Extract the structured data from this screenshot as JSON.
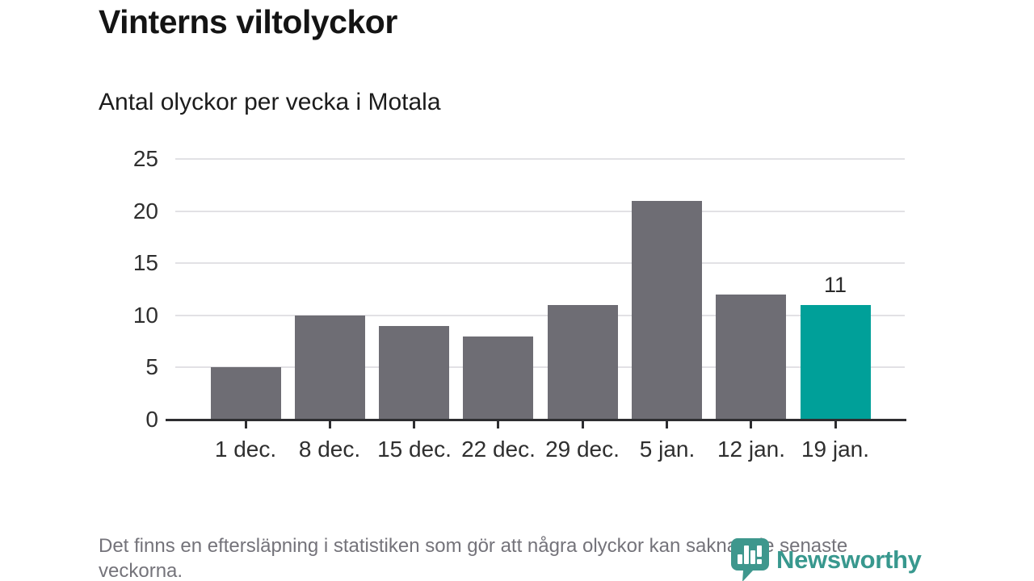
{
  "header": {
    "title": "Vinterns viltolyckor",
    "subtitle": "Antal olyckor per vecka i Motala"
  },
  "chart_data": {
    "type": "bar",
    "title": "Vinterns viltolyckor",
    "subtitle": "Antal olyckor per vecka i Motala",
    "categories": [
      "1 dec.",
      "8 dec.",
      "15 dec.",
      "22 dec.",
      "29 dec.",
      "5 jan.",
      "12 jan.",
      "19 jan."
    ],
    "values": [
      5,
      10,
      9,
      8,
      11,
      21,
      12,
      11
    ],
    "highlighted_index": 7,
    "data_label": {
      "index": 7,
      "text": "11"
    },
    "xlabel": "",
    "ylabel": "",
    "yticks": [
      0,
      5,
      10,
      15,
      20,
      25
    ],
    "ylim": [
      0,
      25
    ],
    "grid": "horizontal-only",
    "legend": "none",
    "bar_color": "#6e6d74",
    "highlight_color": "#00a099",
    "gridline_color": "#e2e1e5",
    "axis_color": "#2d2d30"
  },
  "footnote": {
    "text": "Det finns en eftersläpning i statistiken som gör att några olyckor kan saknas de senaste veckorna."
  },
  "logo": {
    "text": "Newsworthy",
    "color": "#38988e",
    "icon": "bar-chart-pin-icon"
  }
}
